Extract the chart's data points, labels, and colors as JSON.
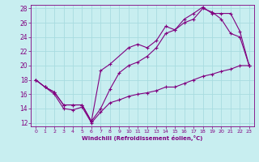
{
  "xlabel": "Windchill (Refroidissement éolien,°C)",
  "bg_color": "#c8eef0",
  "grid_color": "#a8dce0",
  "line_color": "#800080",
  "xlim": [
    -0.5,
    23.5
  ],
  "ylim": [
    11.5,
    28.5
  ],
  "xticks": [
    0,
    1,
    2,
    3,
    4,
    5,
    6,
    7,
    8,
    9,
    10,
    11,
    12,
    13,
    14,
    15,
    16,
    17,
    18,
    19,
    20,
    21,
    22,
    23
  ],
  "yticks": [
    12,
    14,
    16,
    18,
    20,
    22,
    24,
    26,
    28
  ],
  "line1_x": [
    0,
    1,
    2,
    3,
    4,
    5,
    6,
    7,
    8,
    10,
    11,
    12,
    13,
    14,
    15,
    16,
    17,
    18,
    19,
    20,
    21,
    22,
    23
  ],
  "line1_y": [
    18,
    17,
    16.3,
    14.5,
    14.5,
    14.5,
    12.2,
    19.3,
    20.2,
    22.5,
    23.0,
    22.5,
    23.5,
    25.5,
    25.0,
    26.5,
    27.3,
    28.2,
    27.3,
    27.3,
    27.3,
    24.8,
    20.0
  ],
  "line2_x": [
    0,
    1,
    2,
    3,
    4,
    5,
    6,
    7,
    8,
    9,
    10,
    11,
    12,
    13,
    14,
    15,
    16,
    17,
    18,
    19,
    20,
    21,
    22,
    23
  ],
  "line2_y": [
    18,
    17,
    16.3,
    14.5,
    14.5,
    14.5,
    12.2,
    14.0,
    16.7,
    19.0,
    20.0,
    20.5,
    21.3,
    22.5,
    24.5,
    25.0,
    26.0,
    26.5,
    28.0,
    27.5,
    26.5,
    24.5,
    24.0,
    20.0
  ],
  "line3_x": [
    0,
    1,
    2,
    3,
    4,
    5,
    6,
    7,
    8,
    9,
    10,
    11,
    12,
    13,
    14,
    15,
    16,
    17,
    18,
    19,
    20,
    21,
    22,
    23
  ],
  "line3_y": [
    18,
    17,
    16,
    14,
    13.8,
    14.2,
    12,
    13.5,
    14.8,
    15.2,
    15.7,
    16.0,
    16.2,
    16.5,
    17.0,
    17.0,
    17.5,
    18.0,
    18.5,
    18.8,
    19.2,
    19.5,
    20.0,
    20.0
  ]
}
